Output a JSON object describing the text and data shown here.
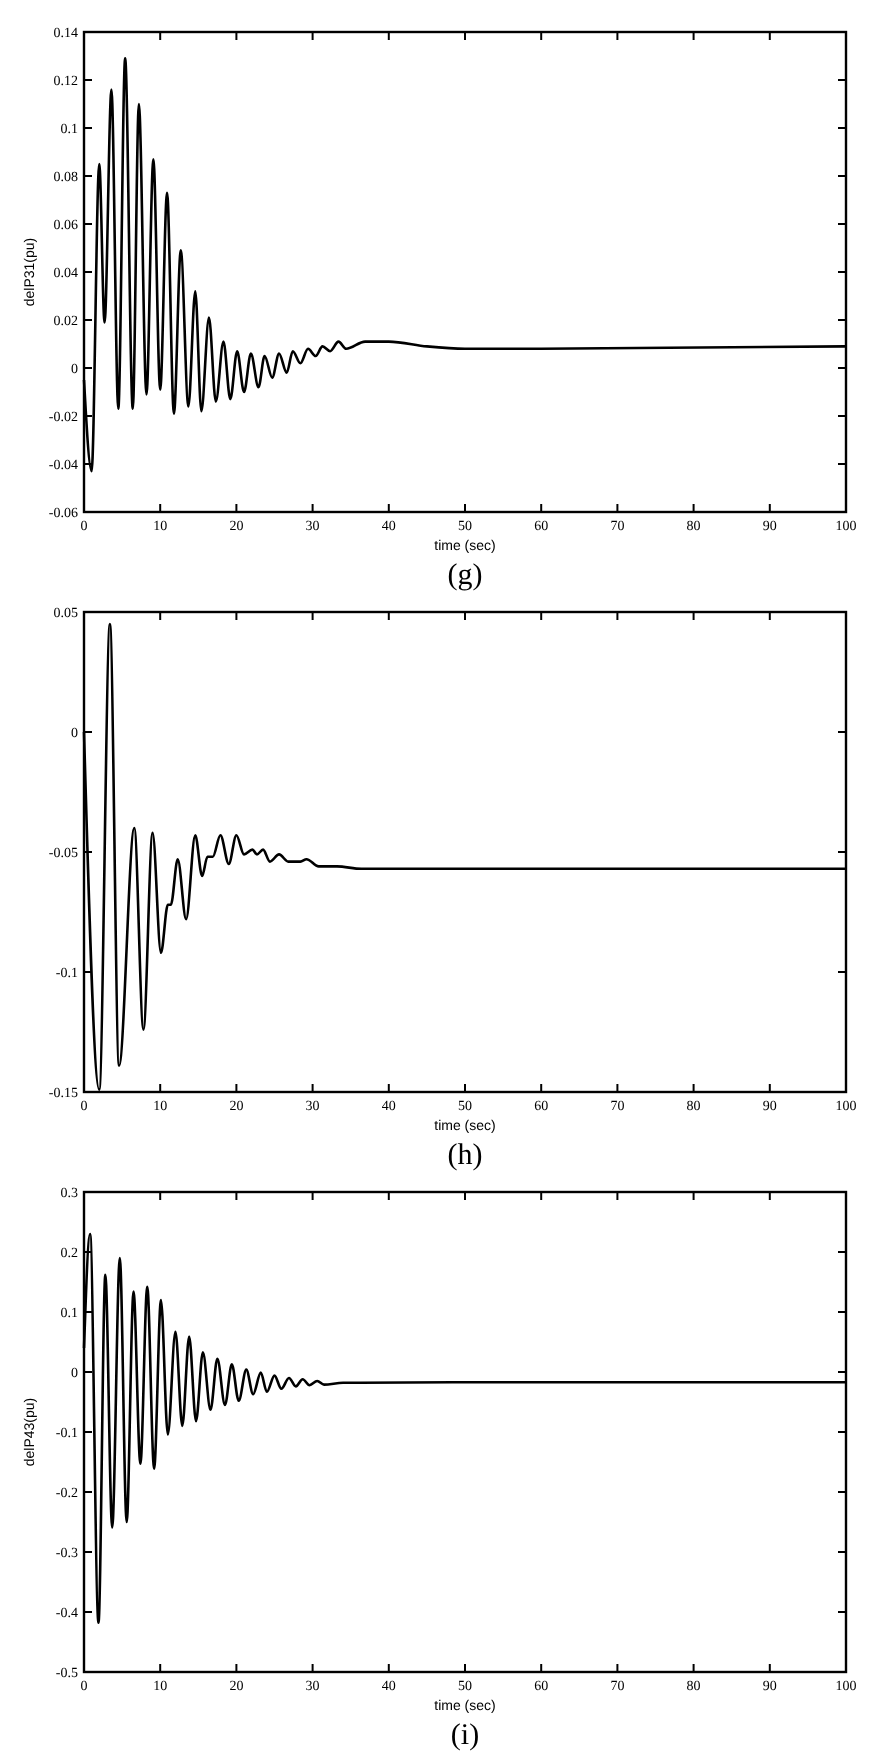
{
  "chart_data": [
    {
      "type": "line",
      "xlabel": "time (sec)",
      "ylabel": "delP31(pu)",
      "annotations": [
        "(g)"
      ],
      "xlim": [
        0,
        100
      ],
      "xticks": [
        0,
        10,
        20,
        30,
        40,
        50,
        60,
        70,
        80,
        90,
        100
      ],
      "ylim": [
        -0.06,
        0.14
      ],
      "yticks": [
        -0.06,
        -0.04,
        -0.02,
        0,
        0.02,
        0.04,
        0.06,
        0.08,
        0.1,
        0.12,
        0.14
      ],
      "series": [
        {
          "color": "#000000",
          "x": [
            0,
            1.0,
            2.0,
            2.7,
            3.6,
            4.5,
            5.4,
            6.4,
            7.2,
            8.2,
            9.1,
            10.0,
            10.9,
            11.8,
            12.7,
            13.7,
            14.6,
            15.4,
            16.4,
            17.3,
            18.3,
            19.2,
            20.1,
            21.0,
            21.9,
            22.9,
            23.7,
            24.7,
            25.6,
            26.6,
            27.4,
            28.4,
            29.4,
            30.4,
            31.3,
            32.3,
            33.4,
            34.4,
            36.9,
            40,
            45,
            50,
            60,
            100
          ],
          "values": [
            -0.005,
            -0.043,
            0.085,
            0.019,
            0.116,
            -0.017,
            0.129,
            -0.017,
            0.11,
            -0.011,
            0.087,
            -0.009,
            0.073,
            -0.019,
            0.049,
            -0.016,
            0.032,
            -0.018,
            0.021,
            -0.014,
            0.011,
            -0.013,
            0.007,
            -0.01,
            0.006,
            -0.008,
            0.005,
            -0.004,
            0.006,
            -0.002,
            0.007,
            0.002,
            0.008,
            0.005,
            0.009,
            0.007,
            0.011,
            0.008,
            0.011,
            0.011,
            0.009,
            0.008,
            0.008,
            0.009
          ]
        }
      ]
    },
    {
      "type": "line",
      "xlabel": "time (sec)",
      "annotations": [
        "(h)"
      ],
      "xlim": [
        0,
        100
      ],
      "xticks": [
        0,
        10,
        20,
        30,
        40,
        50,
        60,
        70,
        80,
        90,
        100
      ],
      "ylim": [
        -0.15,
        0.05
      ],
      "yticks": [
        -0.15,
        -0.1,
        -0.05,
        0,
        0.05
      ],
      "series": [
        {
          "color": "#000000",
          "x": [
            0,
            2.0,
            3.4,
            4.6,
            6.6,
            7.8,
            9.0,
            10.1,
            11.0,
            11.4,
            12.3,
            13.4,
            14.6,
            15.5,
            16.2,
            16.9,
            17.9,
            19.0,
            20.0,
            21.0,
            22.1,
            22.7,
            23.5,
            24.4,
            25.6,
            26.8,
            28.4,
            29.2,
            30.8,
            33.2,
            36.4,
            39.6,
            43.6,
            100
          ],
          "values": [
            0,
            -0.149,
            0.045,
            -0.139,
            -0.04,
            -0.124,
            -0.042,
            -0.092,
            -0.072,
            -0.072,
            -0.053,
            -0.078,
            -0.043,
            -0.06,
            -0.052,
            -0.052,
            -0.043,
            -0.055,
            -0.043,
            -0.051,
            -0.049,
            -0.051,
            -0.049,
            -0.054,
            -0.051,
            -0.054,
            -0.054,
            -0.053,
            -0.056,
            -0.056,
            -0.057,
            -0.057,
            -0.057,
            -0.057
          ]
        }
      ]
    },
    {
      "type": "line",
      "xlabel": "time (sec)",
      "ylabel": "delP43(pu)",
      "annotations": [
        "(i)"
      ],
      "xlim": [
        0,
        100
      ],
      "xticks": [
        0,
        10,
        20,
        30,
        40,
        50,
        60,
        70,
        80,
        90,
        100
      ],
      "ylim": [
        -0.5,
        0.3
      ],
      "yticks": [
        -0.5,
        -0.4,
        -0.3,
        -0.2,
        -0.1,
        0,
        0.1,
        0.2,
        0.3
      ],
      "series": [
        {
          "color": "#000000",
          "x": [
            0,
            0.8,
            1.9,
            2.8,
            3.7,
            4.7,
            5.6,
            6.5,
            7.4,
            8.3,
            9.2,
            10.1,
            11.0,
            12.0,
            12.9,
            13.8,
            14.7,
            15.6,
            16.6,
            17.5,
            18.5,
            19.4,
            20.3,
            21.3,
            22.2,
            23.2,
            24.0,
            25.0,
            25.9,
            26.9,
            27.8,
            28.7,
            29.6,
            30.6,
            31.5,
            34,
            36.3,
            48.4,
            100
          ],
          "values": [
            0.04,
            0.23,
            -0.418,
            0.162,
            -0.259,
            0.19,
            -0.25,
            0.134,
            -0.153,
            0.142,
            -0.161,
            0.12,
            -0.104,
            0.067,
            -0.09,
            0.059,
            -0.082,
            0.033,
            -0.063,
            0.022,
            -0.055,
            0.013,
            -0.048,
            0.004,
            -0.037,
            -0.001,
            -0.033,
            -0.006,
            -0.028,
            -0.01,
            -0.024,
            -0.012,
            -0.022,
            -0.015,
            -0.021,
            -0.018,
            -0.018,
            -0.017,
            -0.017
          ]
        }
      ]
    }
  ]
}
